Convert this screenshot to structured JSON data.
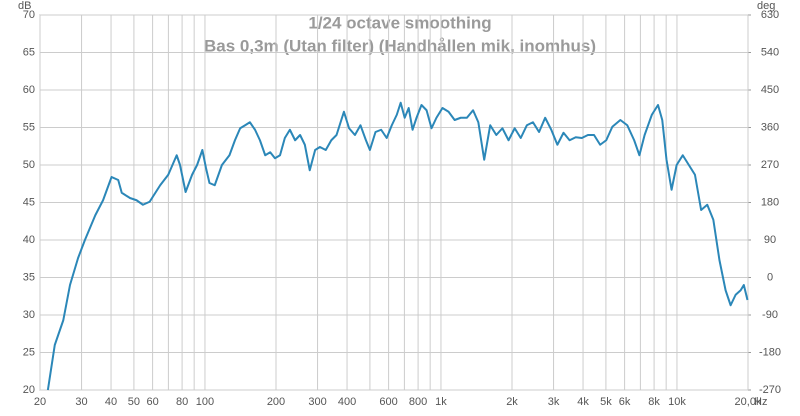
{
  "chart_data": {
    "type": "line",
    "title": "1/24 octave smoothing",
    "subtitle": "Bas 0,3m (Utan filter) (Handhållen mik, inomhus)",
    "y_label": "dB",
    "y2_label": "deg",
    "x_label": "Hz",
    "x": [
      21.6,
      23.1,
      25.1,
      26.8,
      29,
      31,
      34.3,
      37,
      40.2,
      42.9,
      44.4,
      48.1,
      51.3,
      54.6,
      58.3,
      64.6,
      69.9,
      75.9,
      78.4,
      82.8,
      88.2,
      92.6,
      97.5,
      101,
      104.5,
      110,
      118,
      127,
      134,
      141,
      148,
      155,
      163,
      171,
      180,
      189,
      198,
      208,
      218,
      229,
      241,
      253,
      265,
      278,
      293,
      307,
      325,
      343,
      361,
      388,
      408,
      432,
      456,
      481,
      500,
      528,
      558,
      589,
      619,
      650,
      675,
      702,
      730,
      758,
      788,
      827,
      869,
      912,
      957,
      1015,
      1077,
      1143,
      1213,
      1288,
      1368,
      1440,
      1525,
      1617,
      1716,
      1821,
      1934,
      2053,
      2178,
      2312,
      2454,
      2604,
      2764,
      2934,
      3114,
      3306,
      3508,
      3724,
      3952,
      4195,
      4452,
      4726,
      5016,
      5324,
      5757,
      6158,
      6587,
      6932,
      7294,
      7827,
      8312,
      8663,
      9031,
      9488,
      9970,
      10580,
      11230,
      11920,
      12660,
      13440,
      14260,
      15140,
      16070,
      16880,
      17730,
      18620,
      19200,
      19900
    ],
    "series": [
      {
        "name": "Bas 0,3m",
        "color": "#2b87b8",
        "values": [
          20,
          26,
          29.3,
          34,
          37.6,
          40,
          43.3,
          45.3,
          48.4,
          48,
          46.3,
          45.6,
          45.3,
          44.7,
          45.1,
          47.3,
          48.7,
          51.3,
          50,
          46.4,
          48.7,
          50,
          52,
          49.6,
          47.6,
          47.3,
          50,
          51.3,
          53.3,
          54.9,
          55.3,
          55.7,
          54.7,
          53.3,
          51.3,
          51.7,
          50.9,
          51.3,
          53.6,
          54.7,
          53.3,
          54,
          52.7,
          49.3,
          52,
          52.4,
          52,
          53.3,
          54,
          57.1,
          54.9,
          54,
          55.3,
          53.3,
          52,
          54.4,
          54.7,
          53.6,
          55.3,
          56.7,
          58.3,
          56.3,
          57.6,
          54.7,
          56.3,
          58,
          57.3,
          54.9,
          56.3,
          57.6,
          57.1,
          56,
          56.3,
          56.3,
          57.3,
          55.7,
          50.7,
          55.3,
          54,
          54.9,
          53.3,
          54.9,
          53.6,
          55.3,
          55.7,
          54.4,
          56.3,
          54.7,
          52.7,
          54.3,
          53.3,
          53.7,
          53.6,
          54,
          54,
          52.7,
          53.3,
          55.1,
          56,
          55.3,
          53.3,
          51.3,
          54,
          56.7,
          58,
          56,
          50.7,
          46.7,
          50,
          51.3,
          50,
          48.7,
          44,
          44.7,
          42.7,
          37.3,
          33.3,
          31.3,
          32.7,
          33.3,
          34,
          32
        ]
      }
    ],
    "log_x": true,
    "xlim": [
      20,
      20000
    ],
    "xticks": [
      20,
      30,
      40,
      50,
      60,
      80,
      100,
      200,
      300,
      400,
      600,
      800,
      {
        "value": 1000,
        "label": "1k"
      },
      {
        "value": 2000,
        "label": "2k"
      },
      {
        "value": 3000,
        "label": "3k"
      },
      {
        "value": 4000,
        "label": "4k"
      },
      {
        "value": 5000,
        "label": "5k"
      },
      {
        "value": 6000,
        "label": "6k"
      },
      {
        "value": 8000,
        "label": "8k"
      },
      {
        "value": 10000,
        "label": "10k"
      },
      {
        "value": 20000,
        "label": "20,0k"
      }
    ],
    "xminorticks": [
      70,
      90,
      500,
      700,
      900,
      7000,
      9000
    ],
    "ylim": [
      20,
      70
    ],
    "yticks": [
      20,
      25,
      30,
      35,
      40,
      45,
      50,
      55,
      60,
      65,
      70
    ],
    "y2lim": [
      -270,
      630
    ],
    "y2ticks": [
      -270,
      -180,
      -90,
      0,
      90,
      180,
      270,
      360,
      450,
      540,
      630
    ],
    "grid": true
  }
}
